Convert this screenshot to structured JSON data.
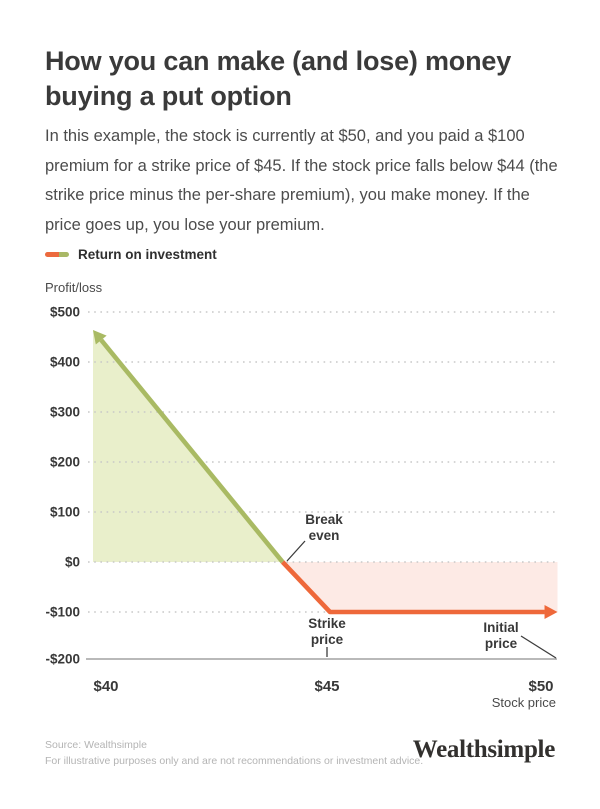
{
  "card": {
    "title": "How you can make (and lose) money buying a put option",
    "description": "In this example, the stock is currently at $50, and you paid a $100 premium for a strike price of $45. If the stock price falls below $44 (the strike price minus the per-share premium), you make money. If the price goes up, you lose your premium.",
    "legend": {
      "label": "Return on investment"
    },
    "footer": {
      "source": "Source: Wealthsimple",
      "disclaimer": "For illustrative purposes only and are not recommendations or investment advice.",
      "brand": "Wealthsimple"
    }
  },
  "colors": {
    "profit_line": "#a9ba63",
    "profit_fill": "#e9efcb",
    "loss_line": "#ee683a",
    "loss_fill": "#fdeae5",
    "gridline": "#c8c8c8",
    "axis": "#8f8f8f",
    "annotation": "#3c3c3c"
  },
  "chart_data": {
    "type": "line",
    "title": "",
    "ylabel": "Profit/loss",
    "xlabel": "Stock price",
    "xlim": [
      40,
      50
    ],
    "ylim": [
      -200,
      500
    ],
    "grid": "dotted-horizontal",
    "legend_position": "top-left",
    "y_ticks": [
      {
        "value": 500,
        "label": "$500"
      },
      {
        "value": 400,
        "label": "$400"
      },
      {
        "value": 300,
        "label": "$300"
      },
      {
        "value": 200,
        "label": "$200"
      },
      {
        "value": 100,
        "label": "$100"
      },
      {
        "value": 0,
        "label": "$0"
      },
      {
        "value": -100,
        "label": "-$100"
      },
      {
        "value": -200,
        "label": "-$200"
      }
    ],
    "x_ticks": [
      {
        "value": 40,
        "label": "$40"
      },
      {
        "value": 45,
        "label": "$45"
      },
      {
        "value": 50,
        "label": "$50"
      }
    ],
    "series": [
      {
        "name": "Return on investment",
        "segments": [
          {
            "id": "profit",
            "color": "#a9ba63",
            "fill": "#e9efcb",
            "points": [
              [
                40,
                464
              ],
              [
                44,
                0
              ]
            ],
            "arrow": "start"
          },
          {
            "id": "loss",
            "color": "#ee683a",
            "fill": "#fdeae5",
            "points": [
              [
                44,
                0
              ],
              [
                45,
                -100
              ],
              [
                49.8,
                -100
              ]
            ],
            "arrow": "end"
          }
        ]
      }
    ],
    "annotations": [
      {
        "label": "Break even",
        "at": {
          "x": 44,
          "y": 0
        }
      },
      {
        "label": "Strike price",
        "at": {
          "x": 45
        }
      },
      {
        "label": "Initial price",
        "at": {
          "x": 50
        }
      }
    ]
  }
}
